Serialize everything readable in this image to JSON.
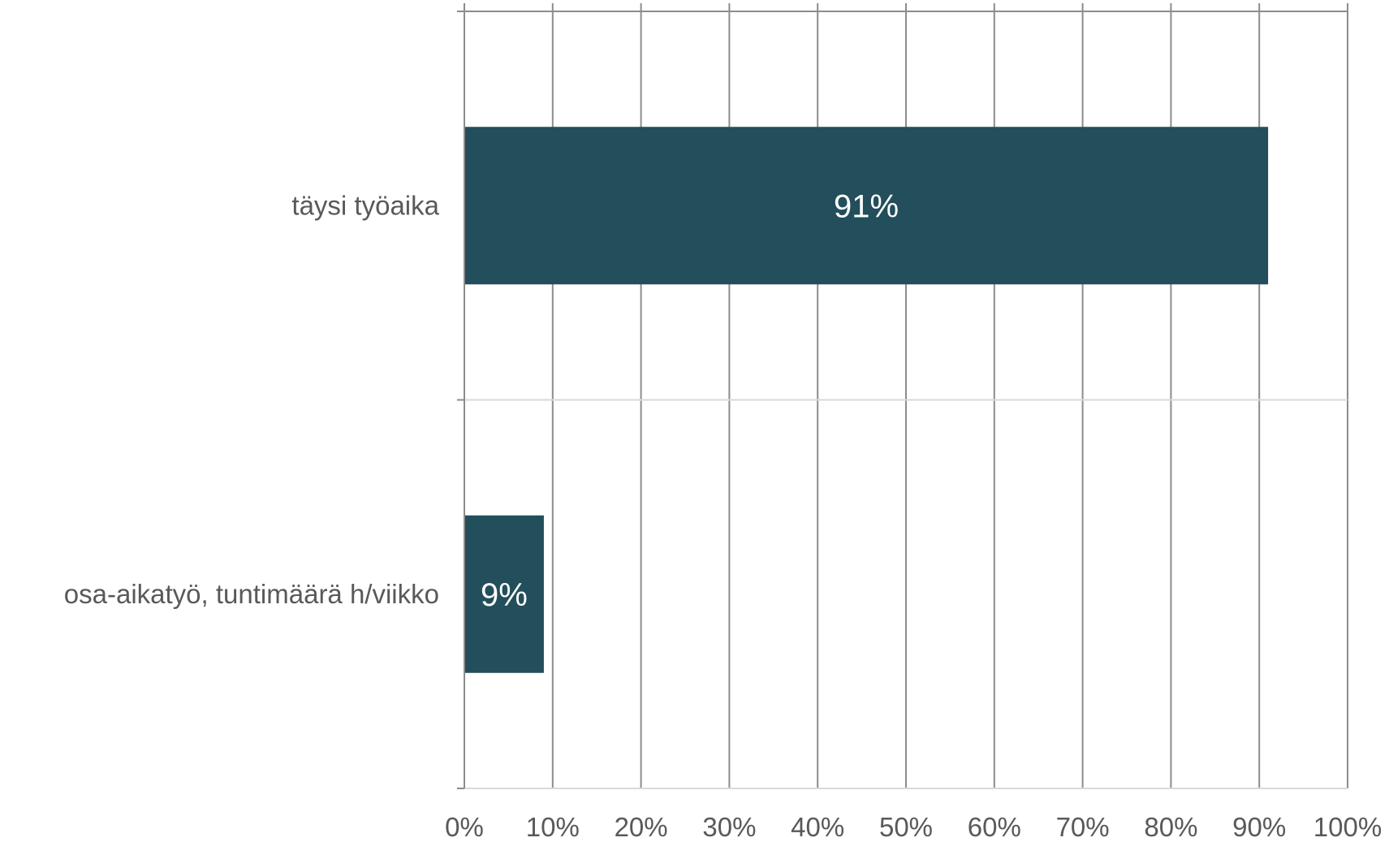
{
  "chart_data": {
    "type": "bar",
    "orientation": "horizontal",
    "title": "",
    "xlabel": "",
    "ylabel": "",
    "categories": [
      "täysi työaika",
      "osa-aikatyö, tuntimäärä h/viikko"
    ],
    "values": [
      91,
      9
    ],
    "data_labels": [
      "91%",
      "9%"
    ],
    "xlim": [
      0,
      100
    ],
    "x_ticks": [
      0,
      10,
      20,
      30,
      40,
      50,
      60,
      70,
      80,
      90,
      100
    ],
    "x_tick_labels": [
      "0%",
      "10%",
      "20%",
      "30%",
      "40%",
      "50%",
      "60%",
      "70%",
      "80%",
      "90%",
      "100%"
    ],
    "grid": true,
    "legend": "none",
    "bar_color": "#234e5b"
  }
}
